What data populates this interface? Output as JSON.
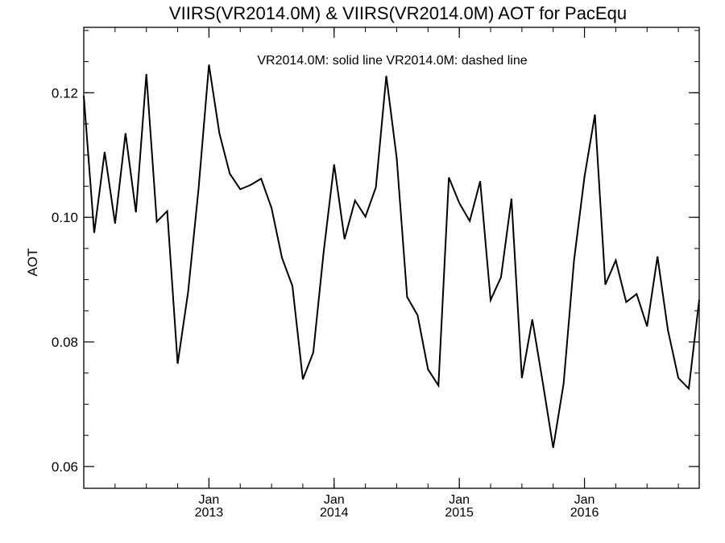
{
  "chart_data": {
    "type": "line",
    "title": "VIIRS(VR2014.0M) & VIIRS(VR2014.0M)  AOT for PacEqu",
    "legend_text": "VR2014.0M: solid line   VR2014.0M: dashed line",
    "ylabel": "AOT",
    "xlabel": "",
    "ylim": [
      0.0565,
      0.1305
    ],
    "y_ticks": [
      {
        "value": 0.06,
        "label": "0.06"
      },
      {
        "value": 0.08,
        "label": "0.08"
      },
      {
        "value": 0.1,
        "label": "0.10"
      },
      {
        "value": 0.12,
        "label": "0.12"
      }
    ],
    "y_minor_step": 0.005,
    "x_range_months": [
      "2012-01",
      "2016-12"
    ],
    "x_ticks": [
      {
        "month": "Jan",
        "year": "2013",
        "date": "2013-01"
      },
      {
        "month": "Jan",
        "year": "2014",
        "date": "2014-01"
      },
      {
        "month": "Jan",
        "year": "2015",
        "date": "2015-01"
      },
      {
        "month": "Jan",
        "year": "2016",
        "date": "2016-01"
      }
    ],
    "grid": false,
    "line_color": "#000000",
    "series": [
      {
        "style": "solid",
        "dates": [
          "2012-01",
          "2012-02",
          "2012-03",
          "2012-04",
          "2012-05",
          "2012-06",
          "2012-07",
          "2012-08",
          "2012-09",
          "2012-10",
          "2012-11",
          "2012-12",
          "2013-01",
          "2013-02",
          "2013-03",
          "2013-04",
          "2013-05",
          "2013-06",
          "2013-07",
          "2013-08",
          "2013-09",
          "2013-10",
          "2013-11",
          "2013-12",
          "2014-01",
          "2014-02",
          "2014-03",
          "2014-04",
          "2014-05",
          "2014-06",
          "2014-07",
          "2014-08",
          "2014-09",
          "2014-10",
          "2014-11",
          "2014-12",
          "2015-01",
          "2015-02",
          "2015-03",
          "2015-04",
          "2015-05",
          "2015-06",
          "2015-07",
          "2015-08",
          "2015-09",
          "2015-10",
          "2015-11",
          "2015-12",
          "2016-01",
          "2016-02",
          "2016-03",
          "2016-04",
          "2016-05",
          "2016-06",
          "2016-07",
          "2016-08",
          "2016-09",
          "2016-10",
          "2016-11",
          "2016-12"
        ],
        "values": [
          0.1195,
          0.0975,
          0.1105,
          0.099,
          0.1135,
          0.1008,
          0.123,
          0.0993,
          0.101,
          0.0765,
          0.088,
          0.1045,
          0.1245,
          0.1135,
          0.107,
          0.1045,
          0.1052,
          0.1062,
          0.1015,
          0.0935,
          0.089,
          0.074,
          0.0783,
          0.0945,
          0.1085,
          0.0965,
          0.1027,
          0.1001,
          0.1048,
          0.1227,
          0.1095,
          0.0872,
          0.0843,
          0.0756,
          0.073,
          0.1064,
          0.1023,
          0.0994,
          0.1058,
          0.0867,
          0.0904,
          0.103,
          0.0742,
          0.0836,
          0.0735,
          0.063,
          0.0733,
          0.0931,
          0.1065,
          0.1165,
          0.0892,
          0.0931,
          0.0864,
          0.0877,
          0.0825,
          0.0937,
          0.0819,
          0.0742,
          0.0725,
          0.0868
        ]
      }
    ]
  }
}
